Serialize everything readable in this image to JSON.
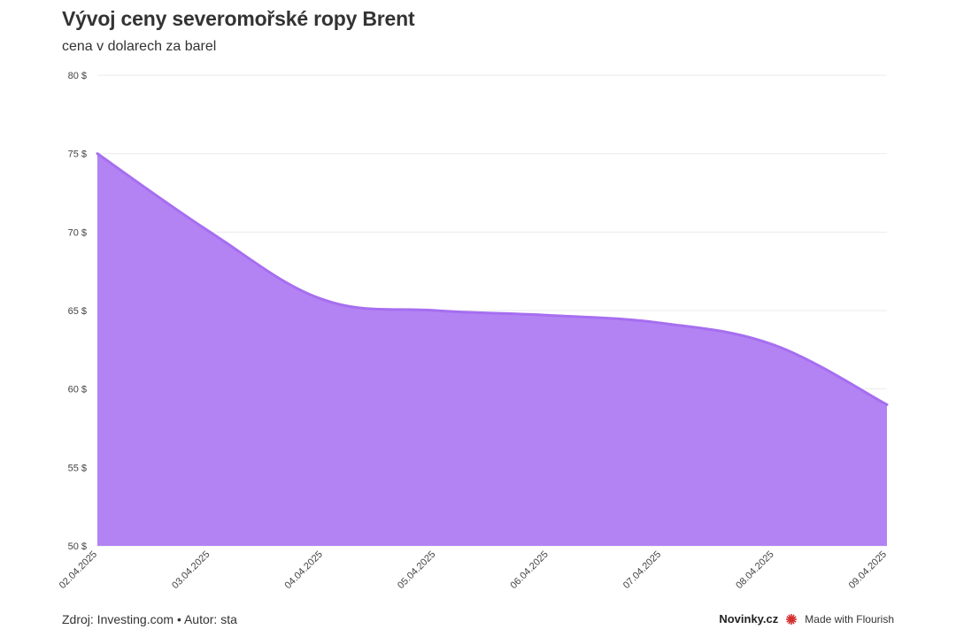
{
  "header": {
    "title": "Vývoj ceny severomořské ropy Brent",
    "subtitle": "cena v dolarech za barel"
  },
  "footer": {
    "source": "Zdroj: Investing.com • Autor: sta",
    "brand": "Novinky.cz",
    "made_with": "Made with Flourish"
  },
  "colors": {
    "area_fill": "#b383f3",
    "area_line": "#a66ef0",
    "grid": "#ebebeb",
    "flourish_red": "#d32d2d"
  },
  "chart_data": {
    "type": "area",
    "title": "Vývoj ceny severomořské ropy Brent",
    "subtitle": "cena v dolarech za barel",
    "categories": [
      "02.04.2025",
      "03.04.2025",
      "04.04.2025",
      "05.04.2025",
      "06.04.2025",
      "07.04.2025",
      "08.04.2025",
      "09.04.2025"
    ],
    "series": [
      {
        "values": [
          75.0,
          70.0,
          65.7,
          65.0,
          64.7,
          64.2,
          62.8,
          59.0
        ]
      }
    ],
    "ylim": [
      50,
      80
    ],
    "yticks": [
      50,
      55,
      60,
      65,
      70,
      75,
      80
    ],
    "ytick_labels": [
      "50 $",
      "55 $",
      "60 $",
      "65 $",
      "70 $",
      "75 $",
      "80 $"
    ],
    "grid": true
  }
}
